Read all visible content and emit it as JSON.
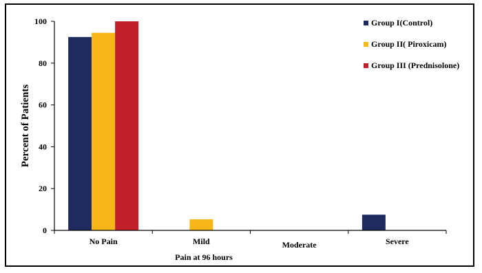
{
  "chart_data": {
    "type": "bar",
    "categories": [
      "No Pain",
      "Mild",
      "Moderate",
      "Severe"
    ],
    "series": [
      {
        "name": "Group I(Control)",
        "color": "#1f2a5e",
        "values": [
          92.5,
          0,
          0,
          7.5
        ]
      },
      {
        "name": "Group II( Piroxicam)",
        "color": "#f7b718",
        "values": [
          94.5,
          5.3,
          0,
          0
        ]
      },
      {
        "name": "Group III (Prednisolone)",
        "color": "#c0202a",
        "values": [
          100,
          0,
          0,
          0
        ]
      }
    ],
    "title": "",
    "xlabel": "Pain at 96 hours",
    "ylabel": "Percent of  Patients",
    "ylim": [
      0,
      100
    ],
    "yticks": [
      "0",
      "20",
      "40",
      "60",
      "80",
      "100"
    ],
    "legend": "top-right",
    "grid": false
  }
}
